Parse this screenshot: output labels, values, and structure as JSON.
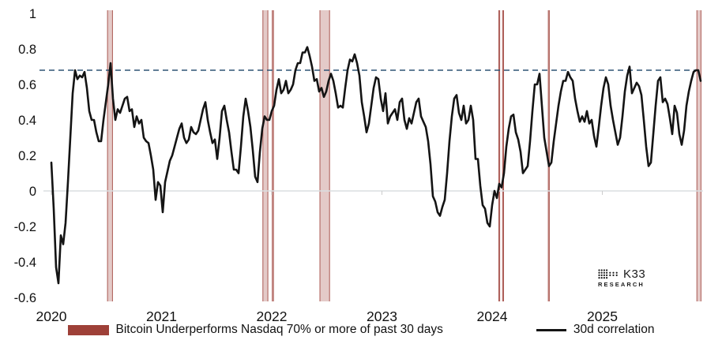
{
  "chart_data": {
    "type": "line",
    "title": "",
    "xlabel": "",
    "ylabel": "",
    "grid": "zero-line-only",
    "legend_position": "bottom",
    "ylim": [
      -0.6,
      1.0
    ],
    "xlim": [
      2020.0,
      2025.95
    ],
    "y_ticks": {
      "values": [
        1,
        0.8,
        0.6,
        0.4,
        0.2,
        0,
        -0.2,
        -0.4,
        -0.6
      ],
      "labels": [
        "1",
        "0.8",
        "0.6",
        "0.4",
        "0.2",
        "0",
        "-0.2",
        "-0.4",
        "-0.6"
      ]
    },
    "x_ticks": {
      "values": [
        2020,
        2021,
        2022,
        2023,
        2024,
        2025
      ],
      "labels": [
        "2020",
        "2021",
        "2022",
        "2023",
        "2024",
        "2025"
      ]
    },
    "threshold_line": {
      "value": 0.68,
      "style": "dashed",
      "color": "#2f5375"
    },
    "zero_line_color": "#dadde0",
    "series": [
      {
        "name": "30d correlation",
        "color": "#141414",
        "t_start": 2020.0,
        "t_step": 0.021505,
        "values": [
          0.16,
          -0.1,
          -0.43,
          -0.52,
          -0.25,
          -0.3,
          -0.18,
          0.05,
          0.3,
          0.55,
          0.68,
          0.63,
          0.65,
          0.64,
          0.67,
          0.58,
          0.45,
          0.4,
          0.4,
          0.33,
          0.28,
          0.28,
          0.4,
          0.5,
          0.6,
          0.72,
          0.52,
          0.4,
          0.46,
          0.44,
          0.48,
          0.52,
          0.53,
          0.45,
          0.46,
          0.36,
          0.42,
          0.38,
          0.4,
          0.3,
          0.28,
          0.27,
          0.2,
          0.12,
          -0.05,
          0.05,
          0.03,
          -0.12,
          0.05,
          0.11,
          0.17,
          0.2,
          0.25,
          0.3,
          0.35,
          0.38,
          0.3,
          0.27,
          0.29,
          0.36,
          0.33,
          0.32,
          0.34,
          0.4,
          0.46,
          0.5,
          0.4,
          0.33,
          0.27,
          0.29,
          0.18,
          0.3,
          0.45,
          0.48,
          0.4,
          0.33,
          0.22,
          0.12,
          0.12,
          0.1,
          0.25,
          0.42,
          0.52,
          0.45,
          0.36,
          0.23,
          0.08,
          0.05,
          0.22,
          0.35,
          0.42,
          0.4,
          0.4,
          0.45,
          0.48,
          0.57,
          0.63,
          0.55,
          0.57,
          0.62,
          0.55,
          0.57,
          0.6,
          0.68,
          0.72,
          0.72,
          0.78,
          0.78,
          0.81,
          0.76,
          0.7,
          0.62,
          0.63,
          0.56,
          0.58,
          0.53,
          0.56,
          0.62,
          0.66,
          0.62,
          0.55,
          0.47,
          0.48,
          0.47,
          0.58,
          0.68,
          0.74,
          0.73,
          0.77,
          0.72,
          0.65,
          0.5,
          0.42,
          0.33,
          0.38,
          0.48,
          0.58,
          0.64,
          0.63,
          0.52,
          0.45,
          0.55,
          0.38,
          0.42,
          0.44,
          0.46,
          0.4,
          0.5,
          0.52,
          0.4,
          0.35,
          0.41,
          0.38,
          0.44,
          0.5,
          0.52,
          0.42,
          0.39,
          0.36,
          0.28,
          0.15,
          -0.03,
          -0.06,
          -0.12,
          -0.14,
          -0.09,
          -0.05,
          0.1,
          0.28,
          0.42,
          0.52,
          0.54,
          0.44,
          0.4,
          0.48,
          0.38,
          0.4,
          0.48,
          0.4,
          0.18,
          0.18,
          0.03,
          -0.08,
          -0.1,
          -0.18,
          -0.2,
          -0.08,
          0,
          -0.04,
          0.04,
          0.02,
          0.1,
          0.25,
          0.35,
          0.42,
          0.43,
          0.33,
          0.29,
          0.22,
          0.1,
          0.12,
          0.14,
          0.28,
          0.45,
          0.6,
          0.6,
          0.66,
          0.48,
          0.3,
          0.22,
          0.14,
          0.16,
          0.28,
          0.38,
          0.48,
          0.56,
          0.62,
          0.62,
          0.67,
          0.64,
          0.62,
          0.52,
          0.45,
          0.39,
          0.42,
          0.39,
          0.45,
          0.38,
          0.4,
          0.31,
          0.25,
          0.36,
          0.48,
          0.58,
          0.64,
          0.6,
          0.48,
          0.4,
          0.33,
          0.26,
          0.3,
          0.42,
          0.56,
          0.65,
          0.7,
          0.55,
          0.58,
          0.61,
          0.59,
          0.54,
          0.4,
          0.25,
          0.14,
          0.16,
          0.32,
          0.48,
          0.62,
          0.64,
          0.5,
          0.52,
          0.49,
          0.41,
          0.32,
          0.48,
          0.44,
          0.32,
          0.26,
          0.34,
          0.48,
          0.56,
          0.62,
          0.67,
          0.68,
          0.68,
          0.62
        ]
      }
    ],
    "bands": {
      "name": "Bitcoin Underperforms Nasdaq 70% or more of past 30 days",
      "color": "#9e4038",
      "fill": "rgba(158,64,56,0.28)",
      "ranges": [
        [
          2020.51,
          2020.555
        ],
        [
          2021.92,
          2021.965
        ],
        [
          2022.005,
          2022.016
        ],
        [
          2022.437,
          2022.525
        ],
        [
          2024.06,
          2024.069
        ],
        [
          2024.095,
          2024.104
        ],
        [
          2024.51,
          2024.519
        ],
        [
          2025.858,
          2025.895
        ]
      ]
    }
  },
  "legend": {
    "band_label": "Bitcoin Underperforms Nasdaq 70% or more of past 30 days",
    "line_label": "30d correlation"
  },
  "branding": {
    "name": "K33",
    "sub": "RESEARCH"
  },
  "colors": {
    "line": "#141414",
    "band": "#9e4038",
    "threshold": "#2f5375",
    "zero_line": "#dadde0",
    "text": "#111111"
  }
}
